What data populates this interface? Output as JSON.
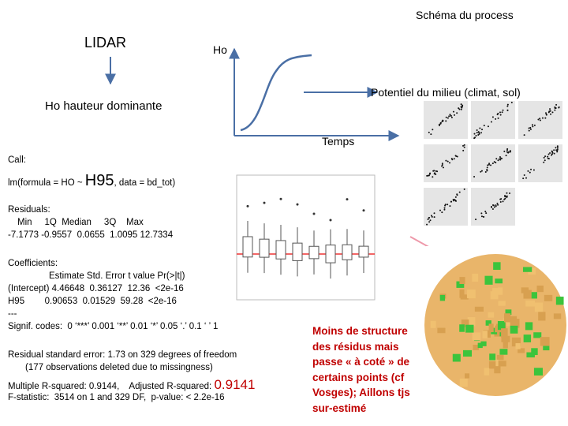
{
  "header": {
    "title": "Schéma du process"
  },
  "schema": {
    "source": "LIDAR",
    "y_axis": "Ho",
    "arrow_label": "Potentiel du milieu (climat, sol)",
    "definition": "Ho hauteur dominante",
    "x_axis": "Temps"
  },
  "output": {
    "call_label": "Call:",
    "formula_start": "lm(formula = HO ~ ",
    "formula_var": "H95",
    "formula_end": ", data = bd_tot)",
    "residuals_label": "Residuals:",
    "residuals_header": "Min     1Q  Median     3Q    Max",
    "residuals_values": "-7.1773 -0.9557  0.0655  1.0095 12.7334",
    "coefficients_label": "Coefficients:",
    "coef_header": "Estimate Std. Error t value Pr(>|t|)",
    "coef_rows": [
      "(Intercept) 4.46648  0.36127  12.36  <2e-16",
      "H95        0.90653  0.01529  59.28  <2e-16"
    ],
    "separator": "---",
    "signif": "Signif. codes:  0 ‘***’ 0.001 ‘**’ 0.01 ‘*’ 0.05 ‘.’ 0.1 ‘ ’ 1",
    "rse": "Residual standard error: 1.73 on 329 degrees of freedom",
    "deleted": "(177 observations deleted due to missingness)",
    "r2_start": "Multiple R-squared: 0.9144,    Adjusted R-squared: ",
    "r2_adj": "0.9141",
    "fstat": "F-statistic:  3514 on 1 and 329 DF,  p-value: < 2.2e-16"
  },
  "comment": "Moins de structure des résidus mais passe « à coté » de certains points (cf Vosges); Aillons tjs sur-estimé"
}
